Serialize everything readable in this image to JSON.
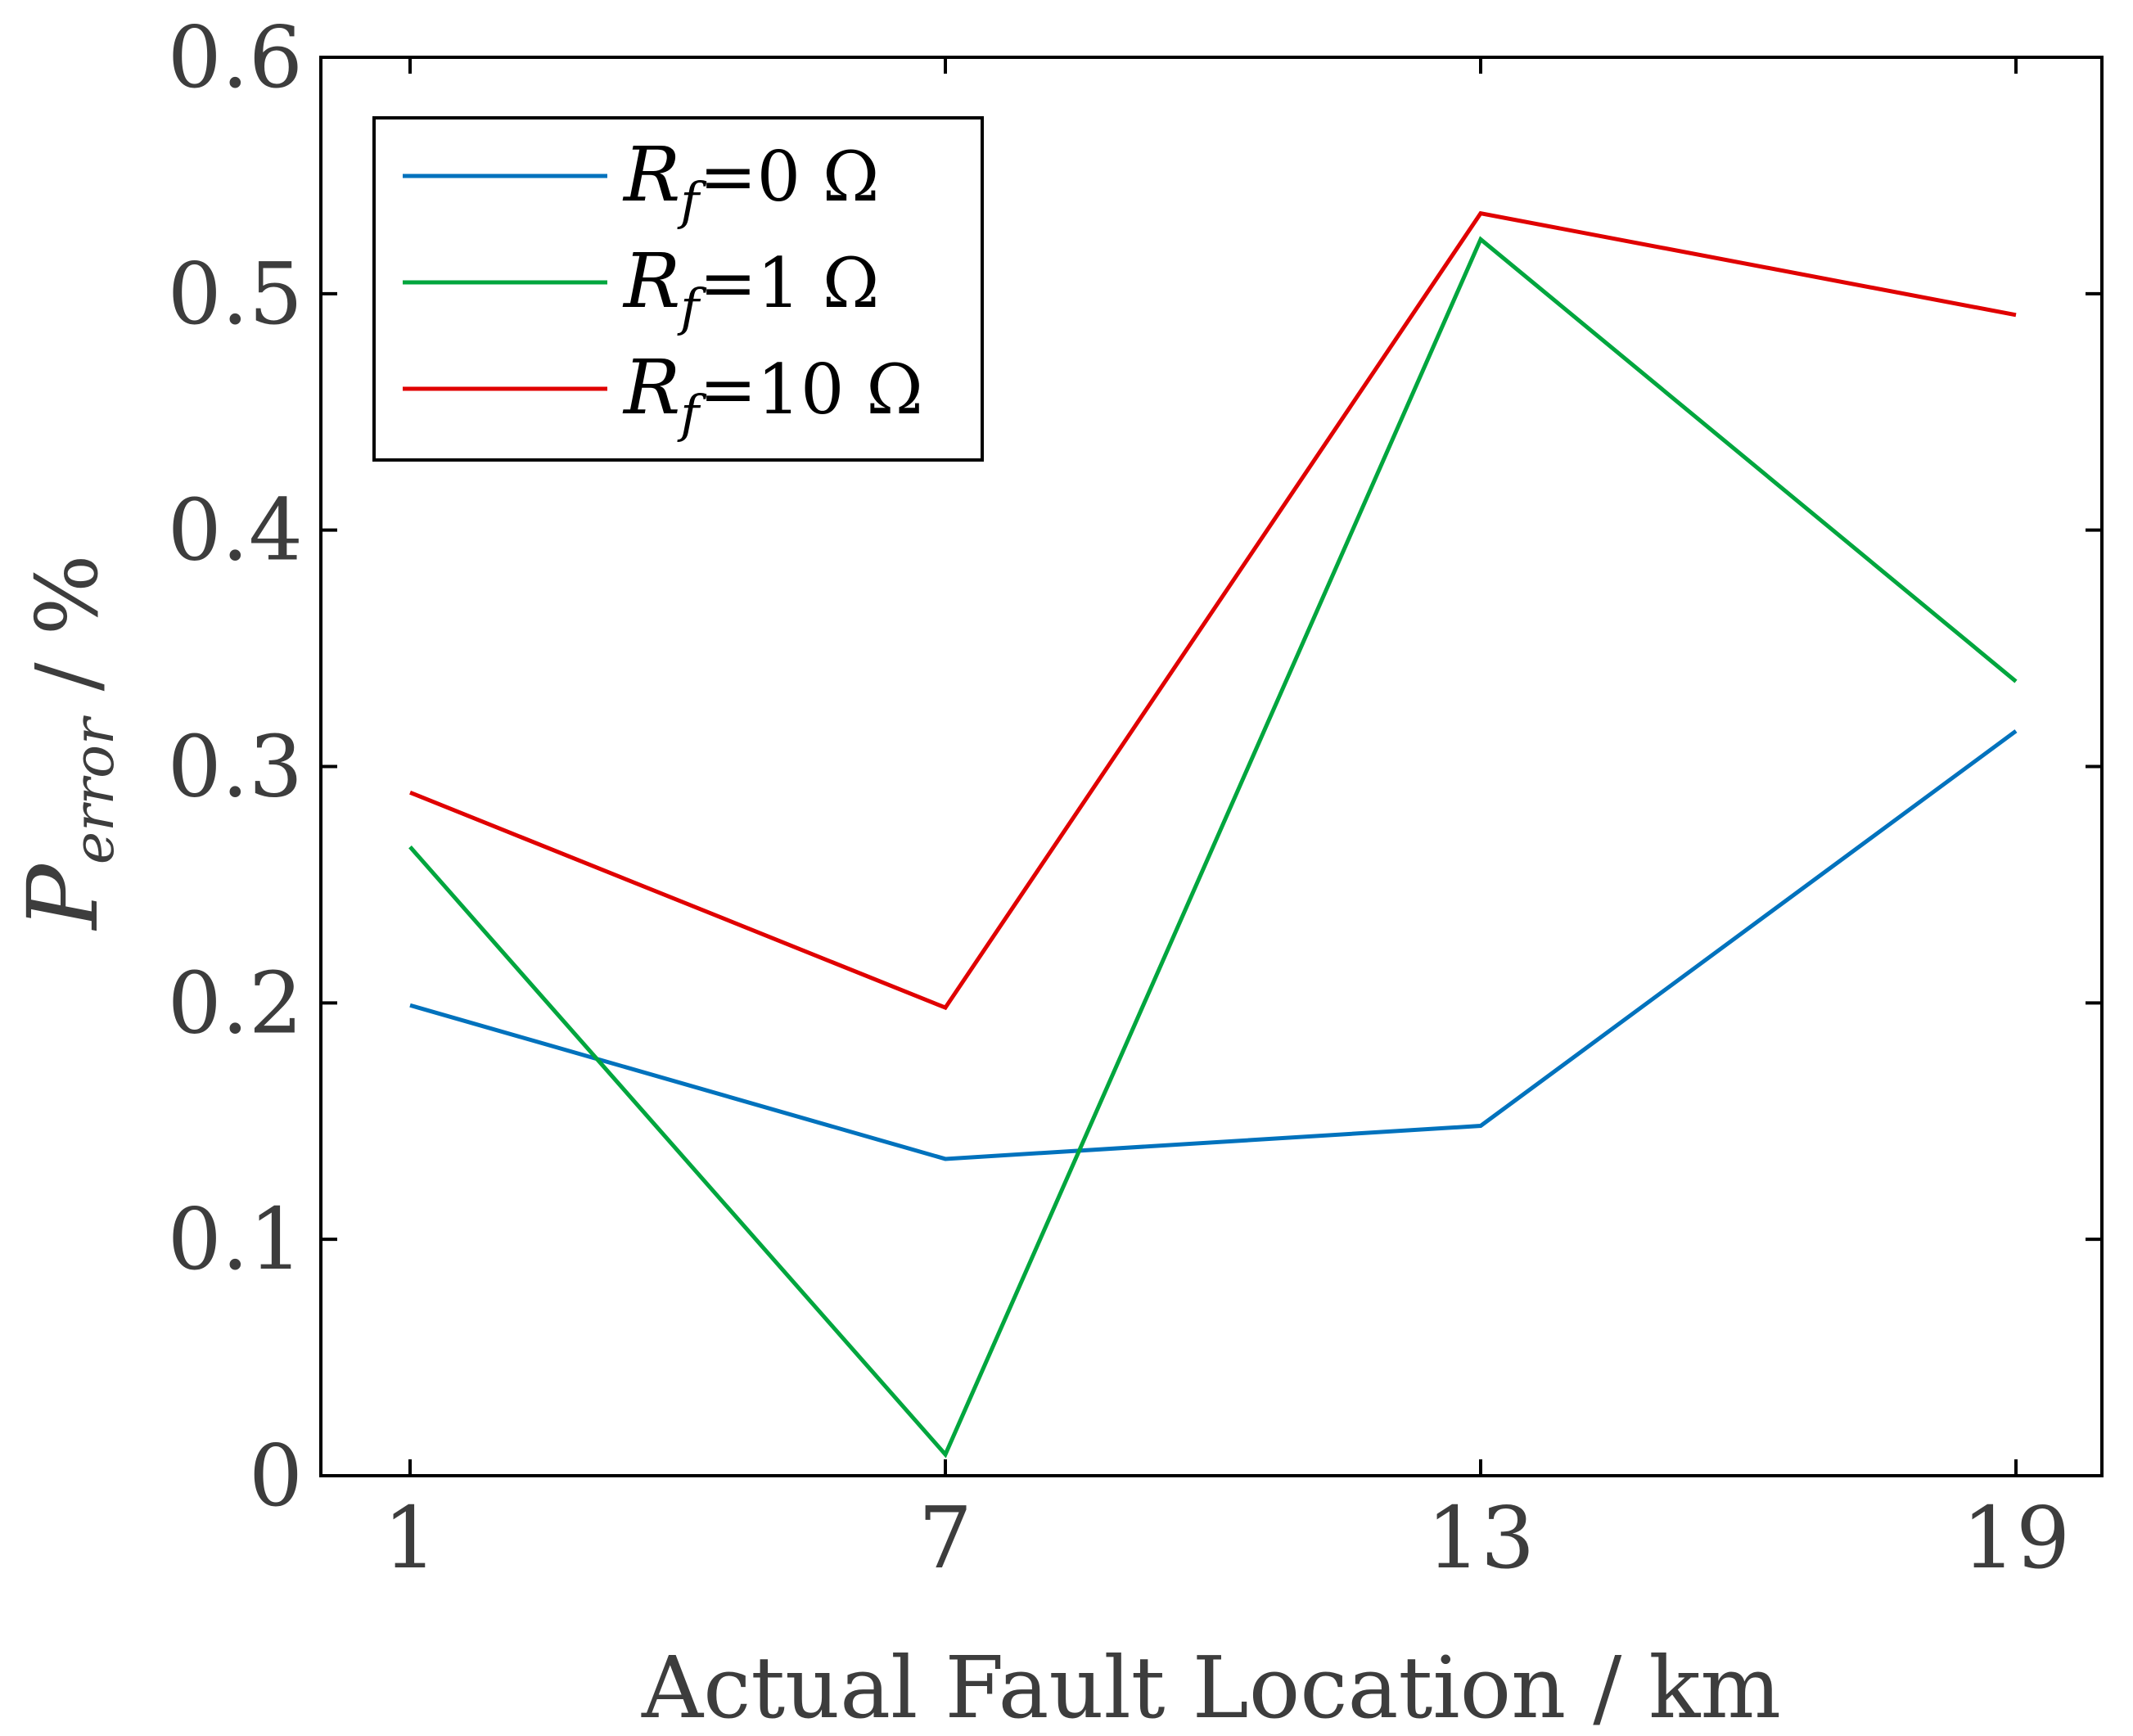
{
  "chart_data": {
    "type": "line",
    "xlabel": "Actual Fault Location / km",
    "ylabel": {
      "main": "P",
      "subscript": "error",
      "unit": " / %"
    },
    "x": [
      1,
      7,
      13,
      19
    ],
    "x_ticks": [
      1,
      7,
      13,
      19
    ],
    "x_tick_labels": [
      "1",
      "7",
      "13",
      "19"
    ],
    "xlim": [
      0,
      20.9
    ],
    "ylim": [
      0,
      0.6
    ],
    "y_ticks": [
      0,
      0.1,
      0.2,
      0.3,
      0.4,
      0.5,
      0.6
    ],
    "y_tick_labels": [
      "0",
      "0.1",
      "0.2",
      "0.3",
      "0.4",
      "0.5",
      "0.6"
    ],
    "grid": false,
    "legend_position": "top-left",
    "series": [
      {
        "name": "R_f = 0 Ω",
        "label_main": "R",
        "label_sub": "f",
        "label_value": "=0 Ω",
        "color": "#0072BD",
        "values": [
          0.199,
          0.134,
          0.148,
          0.315
        ]
      },
      {
        "name": "R_f = 1 Ω",
        "label_main": "R",
        "label_sub": "f",
        "label_value": "=1 Ω",
        "color": "#00A63E",
        "values": [
          0.266,
          0.009,
          0.523,
          0.336
        ]
      },
      {
        "name": "R_f = 10 Ω",
        "label_main": "R",
        "label_sub": "f",
        "label_value": "=10 Ω",
        "color": "#E00000",
        "values": [
          0.289,
          0.198,
          0.534,
          0.491
        ]
      }
    ]
  }
}
